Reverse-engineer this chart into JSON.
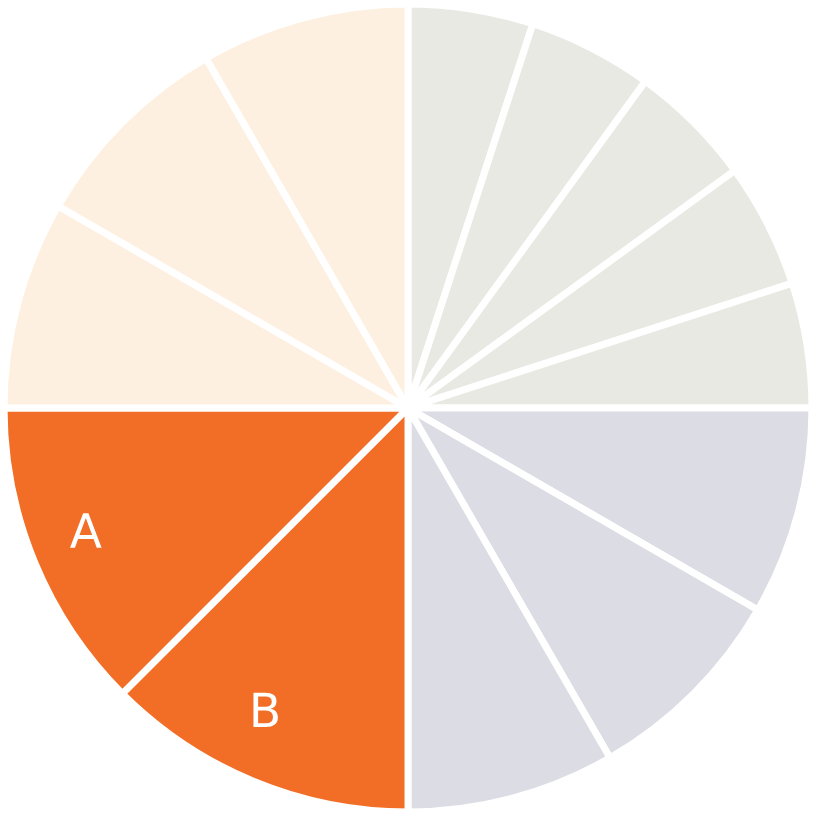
{
  "chart_data": {
    "type": "pie",
    "categories": [
      null,
      null,
      null,
      null,
      null,
      null,
      null,
      null,
      "B",
      "A",
      null,
      null,
      null
    ],
    "values": [
      5,
      5,
      5,
      5,
      5,
      8.333,
      8.333,
      8.333,
      12.5,
      12.5,
      8.333,
      8.333,
      8.333
    ],
    "colors": [
      "#e9e9e4",
      "#e9e9e4",
      "#e9e9e4",
      "#e9e9e4",
      "#e9e9e4",
      "#dcdce4",
      "#dcdce4",
      "#dcdce4",
      "#f26e26",
      "#f26e26",
      "#fdf0e1",
      "#fdf0e1",
      "#fdf0e1"
    ]
  }
}
